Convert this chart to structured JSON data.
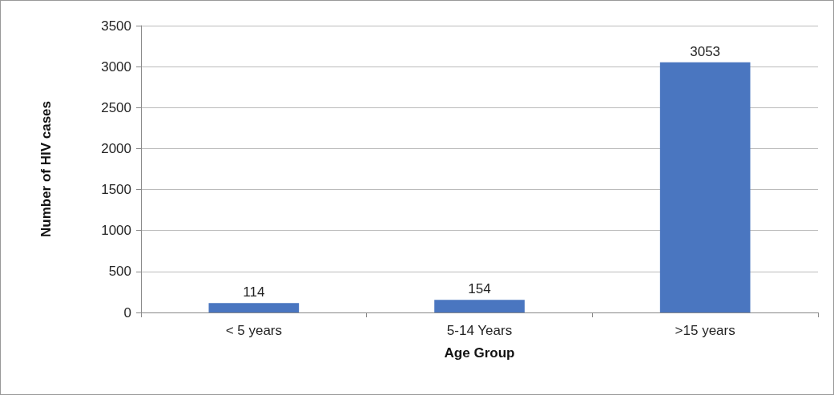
{
  "chart_data": {
    "type": "bar",
    "xlabel": "Age Group",
    "ylabel": "Number of HIV cases",
    "categories": [
      "< 5 years",
      "5-14 Years",
      ">15 years"
    ],
    "values": [
      114,
      154,
      3053
    ],
    "color": "#4a76c0",
    "ylim": [
      0,
      3500
    ],
    "yticks": [
      0,
      500,
      1000,
      1500,
      2000,
      2500,
      3000,
      3500
    ],
    "grid": "y",
    "data_labels": true
  }
}
